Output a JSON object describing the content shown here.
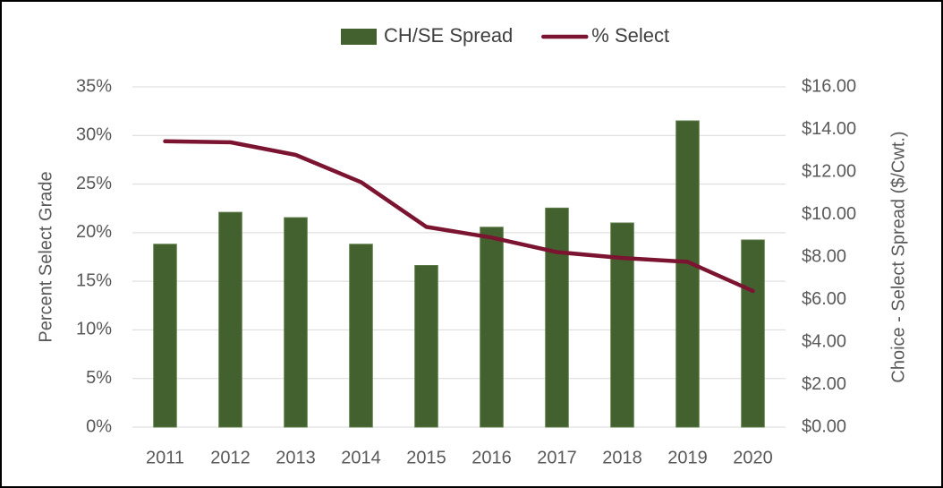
{
  "chart_data": {
    "type": "bar",
    "y_label": "Percent Select Grade",
    "y2_label": "Choice - Select Spread ($/Cwt.)",
    "categories": [
      "2011",
      "2012",
      "2013",
      "2014",
      "2015",
      "2016",
      "2017",
      "2018",
      "2019",
      "2020"
    ],
    "series": [
      {
        "name": "CH/SE Spread",
        "type": "bar",
        "axis": "y2",
        "color": "#43602f",
        "values": [
          8.6,
          10.1,
          9.85,
          8.6,
          7.6,
          9.4,
          10.3,
          9.6,
          14.4,
          8.8
        ]
      },
      {
        "name": "% Select",
        "type": "line",
        "axis": "y",
        "color": "#7b1430",
        "values": [
          29.4,
          29.3,
          28.0,
          25.2,
          20.6,
          19.5,
          18.0,
          17.4,
          17.0,
          14.0
        ]
      }
    ],
    "ylim": [
      0,
      35
    ],
    "yticks": [
      {
        "value": 0,
        "label": "0%"
      },
      {
        "value": 5,
        "label": "5%"
      },
      {
        "value": 10,
        "label": "10%"
      },
      {
        "value": 15,
        "label": "15%"
      },
      {
        "value": 20,
        "label": "20%"
      },
      {
        "value": 25,
        "label": "25%"
      },
      {
        "value": 30,
        "label": "30%"
      },
      {
        "value": 35,
        "label": "35%"
      }
    ],
    "y2lim": [
      0,
      16
    ],
    "y2ticks": [
      {
        "value": 0,
        "label": "$0.00"
      },
      {
        "value": 2,
        "label": "$2.00"
      },
      {
        "value": 4,
        "label": "$4.00"
      },
      {
        "value": 6,
        "label": "$6.00"
      },
      {
        "value": 8,
        "label": "$8.00"
      },
      {
        "value": 10,
        "label": "$10.00"
      },
      {
        "value": 12,
        "label": "$12.00"
      },
      {
        "value": 14,
        "label": "$14.00"
      },
      {
        "value": 16,
        "label": "$16.00"
      }
    ],
    "grid": true,
    "legend": "top"
  }
}
